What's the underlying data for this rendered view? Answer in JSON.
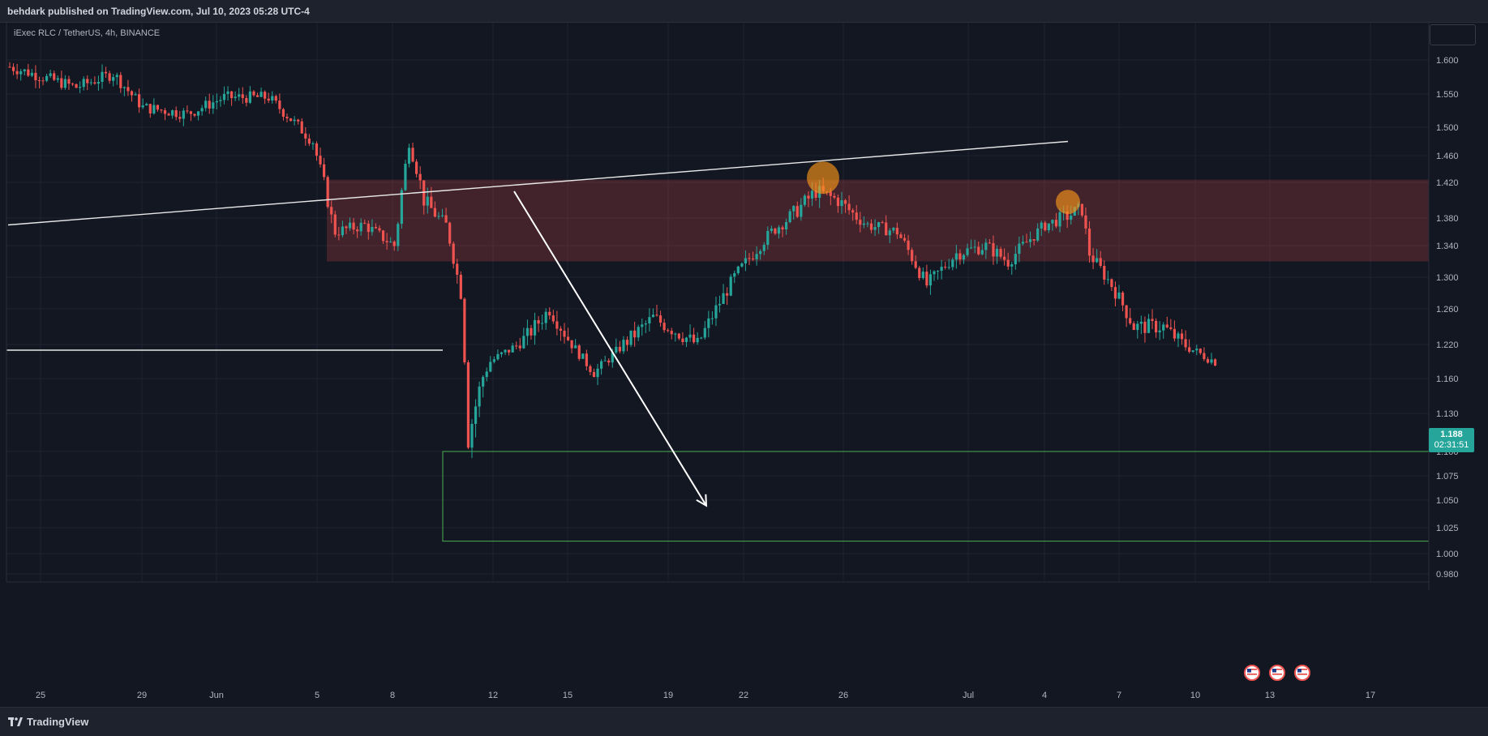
{
  "header": {
    "text": "behdark published on TradingView.com, Jul 10, 2023 05:28 UTC-4"
  },
  "symbol": {
    "label": "iExec RLC / TetherUS, 4h, BINANCE"
  },
  "footer": {
    "brand": "TradingView"
  },
  "price_tag": {
    "price": "1.188",
    "countdown": "02:31:51"
  },
  "colors": {
    "up": "#26a69a",
    "down": "#ef5350",
    "zone": "#ef5350",
    "highlight": "#f7931a",
    "target": "#4caf50"
  },
  "icons": [
    "us-flag-icon",
    "us-flag-icon",
    "us-flag-icon"
  ],
  "chart_data": {
    "type": "candlestick",
    "title": "iExec RLC / TetherUS, 4h, BINANCE",
    "y_ticks": [
      "1.600",
      "1.550",
      "1.500",
      "1.460",
      "1.420",
      "1.380",
      "1.340",
      "1.300",
      "1.260",
      "1.220",
      "1.160",
      "1.130",
      "1.100",
      "1.075",
      "1.050",
      "1.025",
      "1.000",
      "0.980"
    ],
    "x_ticks": [
      "25",
      "29",
      "Jun",
      "5",
      "8",
      "12",
      "15",
      "19",
      "22",
      "26",
      "Jul",
      "4",
      "7",
      "10",
      "13",
      "17"
    ],
    "ohlc_waypoints": [
      {
        "t": 0,
        "price": 1.59
      },
      {
        "t": 18,
        "price": 1.56
      },
      {
        "t": 28,
        "price": 1.58
      },
      {
        "t": 36,
        "price": 1.53
      },
      {
        "t": 48,
        "price": 1.52
      },
      {
        "t": 58,
        "price": 1.545
      },
      {
        "t": 70,
        "price": 1.545
      },
      {
        "t": 82,
        "price": 1.48
      },
      {
        "t": 88,
        "price": 1.36
      },
      {
        "t": 96,
        "price": 1.37
      },
      {
        "t": 104,
        "price": 1.34
      },
      {
        "t": 108,
        "price": 1.48
      },
      {
        "t": 112,
        "price": 1.4
      },
      {
        "t": 118,
        "price": 1.37
      },
      {
        "t": 122,
        "price": 1.28
      },
      {
        "t": 124,
        "price": 1.11
      },
      {
        "t": 130,
        "price": 1.19
      },
      {
        "t": 140,
        "price": 1.23
      },
      {
        "t": 146,
        "price": 1.26
      },
      {
        "t": 152,
        "price": 1.22
      },
      {
        "t": 158,
        "price": 1.17
      },
      {
        "t": 166,
        "price": 1.22
      },
      {
        "t": 174,
        "price": 1.25
      },
      {
        "t": 186,
        "price": 1.22
      },
      {
        "t": 196,
        "price": 1.3
      },
      {
        "t": 206,
        "price": 1.36
      },
      {
        "t": 218,
        "price": 1.41
      },
      {
        "t": 224,
        "price": 1.4
      },
      {
        "t": 232,
        "price": 1.37
      },
      {
        "t": 240,
        "price": 1.36
      },
      {
        "t": 248,
        "price": 1.29
      },
      {
        "t": 256,
        "price": 1.33
      },
      {
        "t": 264,
        "price": 1.34
      },
      {
        "t": 270,
        "price": 1.32
      },
      {
        "t": 280,
        "price": 1.37
      },
      {
        "t": 290,
        "price": 1.39
      },
      {
        "t": 292,
        "price": 1.33
      },
      {
        "t": 298,
        "price": 1.29
      },
      {
        "t": 304,
        "price": 1.24
      },
      {
        "t": 312,
        "price": 1.24
      },
      {
        "t": 320,
        "price": 1.21
      },
      {
        "t": 326,
        "price": 1.19
      }
    ],
    "horizontal_level": 1.21,
    "resistance_zone": {
      "top": 1.424,
      "bottom": 1.32
    },
    "target_box": {
      "top": 1.1,
      "bottom": 1.012
    },
    "trendline": {
      "start": {
        "date": "May 22",
        "price": 1.37
      },
      "end": {
        "date": "Jul 5",
        "price": 1.48
      }
    },
    "arrow": {
      "from": {
        "date": "Jun 13",
        "price": 1.41
      },
      "to": {
        "date": "Jun 20",
        "price": 1.045
      }
    },
    "highlights": [
      {
        "date": "Jun 24",
        "price": 1.427
      },
      {
        "date": "Jul 5",
        "price": 1.398
      }
    ],
    "last_price": 1.188
  }
}
